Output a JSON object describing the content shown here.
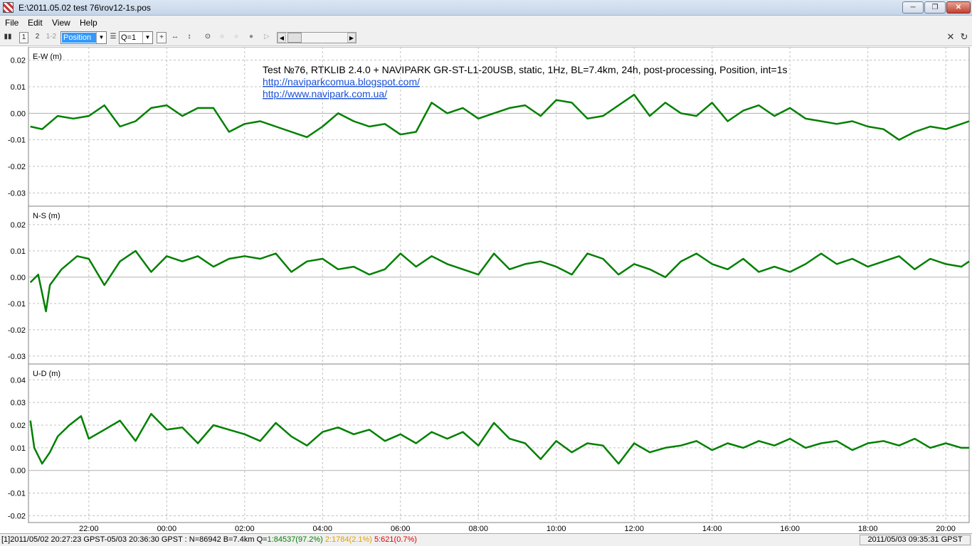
{
  "window": {
    "title": "E:\\2011.05.02 test 76\\rov12-1s.pos"
  },
  "menu": [
    "File",
    "Edit",
    "View",
    "Help"
  ],
  "toolbar": {
    "plot_type": "Position",
    "quality": "Q=1",
    "btn1": "1",
    "btn2": "2",
    "btn12": "1-2"
  },
  "annotation": {
    "text": "Test №76, RTKLIB 2.4.0 + NAVIPARK GR-ST-L1-20USB, static, 1Hz, BL=7.4km, 24h, post-processing, Position, int=1s",
    "link1": "http://naviparkcomua.blogspot.com/",
    "link2": "http://www.navipark.com.ua/"
  },
  "status": {
    "left_main": "[1]2011/05/02 20:27:23 GPST-05/03 20:36:30 GPST : N=86942 B=7.4km Q=",
    "q1": "1:84537(97.2%)",
    "q2": "2:1784(2.1%)",
    "q5": "5:621(0.7%)",
    "right": "2011/05/03 09:35:31 GPST"
  },
  "colors": {
    "series": "#008000",
    "grid": "#c0c0c0",
    "axis": "#808080"
  },
  "chart_data": {
    "type": "line",
    "x_ticks": [
      "22:00",
      "00:00",
      "02:00",
      "04:00",
      "06:00",
      "08:00",
      "10:00",
      "12:00",
      "14:00",
      "16:00",
      "18:00",
      "20:00"
    ],
    "x_range_hours": [
      20.45,
      44.6
    ],
    "panels": [
      {
        "label": "E-W (m)",
        "ylim": [
          -0.035,
          0.025
        ],
        "yticks": [
          "0.02",
          "0.01",
          "0.00",
          "-0.01",
          "-0.02",
          "-0.03"
        ],
        "ytick_values": [
          0.02,
          0.01,
          0.0,
          -0.01,
          -0.02,
          -0.03
        ],
        "x": [
          20.5,
          20.8,
          21.2,
          21.6,
          22.0,
          22.4,
          22.8,
          23.2,
          23.6,
          24.0,
          24.4,
          24.8,
          25.2,
          25.6,
          26.0,
          26.4,
          26.8,
          27.2,
          27.6,
          28.0,
          28.4,
          28.8,
          29.2,
          29.6,
          30.0,
          30.4,
          30.8,
          31.2,
          31.6,
          32.0,
          32.4,
          32.8,
          33.2,
          33.6,
          34.0,
          34.4,
          34.8,
          35.2,
          35.6,
          36.0,
          36.4,
          36.8,
          37.2,
          37.6,
          38.0,
          38.4,
          38.8,
          39.2,
          39.6,
          40.0,
          40.4,
          40.8,
          41.2,
          41.6,
          42.0,
          42.4,
          42.8,
          43.2,
          43.6,
          44.0,
          44.4,
          44.6
        ],
        "values": [
          -0.005,
          -0.006,
          -0.001,
          -0.002,
          -0.001,
          0.003,
          -0.005,
          -0.003,
          0.002,
          0.003,
          -0.001,
          0.002,
          0.002,
          -0.007,
          -0.004,
          -0.003,
          -0.005,
          -0.007,
          -0.009,
          -0.005,
          -0.0,
          -0.003,
          -0.005,
          -0.004,
          -0.008,
          -0.007,
          0.004,
          0.0,
          0.002,
          -0.002,
          -0.0,
          0.002,
          0.003,
          -0.001,
          0.005,
          0.004,
          -0.002,
          -0.001,
          0.003,
          0.007,
          -0.001,
          0.004,
          0.0,
          -0.001,
          0.004,
          -0.003,
          0.001,
          0.003,
          -0.001,
          0.002,
          -0.002,
          -0.003,
          -0.004,
          -0.003,
          -0.005,
          -0.006,
          -0.01,
          -0.007,
          -0.005,
          -0.006,
          -0.004,
          -0.003
        ]
      },
      {
        "label": "N-S (m)",
        "ylim": [
          -0.033,
          0.027
        ],
        "yticks": [
          "0.02",
          "0.01",
          "0.00",
          "-0.01",
          "-0.02",
          "-0.03"
        ],
        "ytick_values": [
          0.02,
          0.01,
          0.0,
          -0.01,
          -0.02,
          -0.03
        ],
        "x": [
          20.5,
          20.7,
          20.9,
          21.0,
          21.3,
          21.7,
          22.0,
          22.4,
          22.8,
          23.2,
          23.6,
          24.0,
          24.4,
          24.8,
          25.2,
          25.6,
          26.0,
          26.4,
          26.8,
          27.2,
          27.6,
          28.0,
          28.4,
          28.8,
          29.2,
          29.6,
          30.0,
          30.4,
          30.8,
          31.2,
          31.6,
          32.0,
          32.4,
          32.8,
          33.2,
          33.6,
          34.0,
          34.4,
          34.8,
          35.2,
          35.6,
          36.0,
          36.4,
          36.8,
          37.2,
          37.6,
          38.0,
          38.4,
          38.8,
          39.2,
          39.6,
          40.0,
          40.4,
          40.8,
          41.2,
          41.6,
          42.0,
          42.4,
          42.8,
          43.2,
          43.6,
          44.0,
          44.4,
          44.6
        ],
        "values": [
          -0.002,
          0.001,
          -0.013,
          -0.003,
          0.003,
          0.008,
          0.007,
          -0.003,
          0.006,
          0.01,
          0.002,
          0.008,
          0.006,
          0.008,
          0.004,
          0.007,
          0.008,
          0.007,
          0.009,
          0.002,
          0.006,
          0.007,
          0.003,
          0.004,
          0.001,
          0.003,
          0.009,
          0.004,
          0.008,
          0.005,
          0.003,
          0.001,
          0.009,
          0.003,
          0.005,
          0.006,
          0.004,
          0.001,
          0.009,
          0.007,
          0.001,
          0.005,
          0.003,
          0.0,
          0.006,
          0.009,
          0.005,
          0.003,
          0.007,
          0.002,
          0.004,
          0.002,
          0.005,
          0.009,
          0.005,
          0.007,
          0.004,
          0.006,
          0.008,
          0.003,
          0.007,
          0.005,
          0.004,
          0.006
        ]
      },
      {
        "label": "U-D (m)",
        "ylim": [
          -0.023,
          0.047
        ],
        "yticks": [
          "0.04",
          "0.03",
          "0.02",
          "0.01",
          "0.00",
          "-0.01",
          "-0.02"
        ],
        "ytick_values": [
          0.04,
          0.03,
          0.02,
          0.01,
          0.0,
          -0.01,
          -0.02
        ],
        "x": [
          20.5,
          20.6,
          20.8,
          21.0,
          21.2,
          21.5,
          21.8,
          22.0,
          22.4,
          22.8,
          23.2,
          23.6,
          24.0,
          24.4,
          24.8,
          25.2,
          25.6,
          26.0,
          26.4,
          26.8,
          27.2,
          27.6,
          28.0,
          28.4,
          28.8,
          29.2,
          29.6,
          30.0,
          30.4,
          30.8,
          31.2,
          31.6,
          32.0,
          32.4,
          32.8,
          33.2,
          33.6,
          34.0,
          34.4,
          34.8,
          35.2,
          35.6,
          36.0,
          36.4,
          36.8,
          37.2,
          37.6,
          38.0,
          38.4,
          38.8,
          39.2,
          39.6,
          40.0,
          40.4,
          40.8,
          41.2,
          41.6,
          42.0,
          42.4,
          42.8,
          43.2,
          43.6,
          44.0,
          44.4,
          44.6
        ],
        "values": [
          0.022,
          0.01,
          0.003,
          0.008,
          0.015,
          0.02,
          0.024,
          0.014,
          0.018,
          0.022,
          0.013,
          0.025,
          0.018,
          0.019,
          0.012,
          0.02,
          0.018,
          0.016,
          0.013,
          0.021,
          0.015,
          0.011,
          0.017,
          0.019,
          0.016,
          0.018,
          0.013,
          0.016,
          0.012,
          0.017,
          0.014,
          0.017,
          0.011,
          0.021,
          0.014,
          0.012,
          0.005,
          0.013,
          0.008,
          0.012,
          0.011,
          0.003,
          0.012,
          0.008,
          0.01,
          0.011,
          0.013,
          0.009,
          0.012,
          0.01,
          0.013,
          0.011,
          0.014,
          0.01,
          0.012,
          0.013,
          0.009,
          0.012,
          0.013,
          0.011,
          0.014,
          0.01,
          0.012,
          0.01,
          0.01
        ]
      }
    ]
  }
}
